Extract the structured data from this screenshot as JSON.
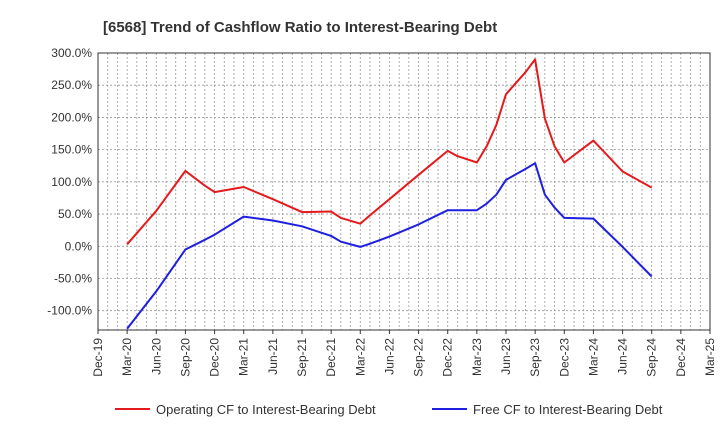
{
  "chart_data": {
    "type": "line",
    "title": "[6568]  Trend of Cashflow Ratio to Interest-Bearing Debt",
    "xlabel": "",
    "ylabel": "",
    "y_unit": "%",
    "ylim": [
      -130,
      300
    ],
    "y_ticks": [
      300,
      250,
      200,
      150,
      100,
      50,
      0,
      -50,
      -100
    ],
    "y_tick_labels": [
      "300.0%",
      "250.0%",
      "200.0%",
      "150.0%",
      "100.0%",
      "50.0%",
      "0.0%",
      "-50.0%",
      "-100.0%"
    ],
    "x_ticks": [
      "Dec-19",
      "Mar-20",
      "Jun-20",
      "Sep-20",
      "Dec-20",
      "Mar-21",
      "Jun-21",
      "Sep-21",
      "Dec-21",
      "Mar-22",
      "Jun-22",
      "Sep-22",
      "Dec-22",
      "Mar-23",
      "Jun-23",
      "Sep-23",
      "Dec-23",
      "Mar-24",
      "Jun-24",
      "Sep-24",
      "Dec-24",
      "Mar-25"
    ],
    "x": [
      "Mar-20",
      "Jun-20",
      "Sep-20",
      "Nov-20",
      "Dec-20",
      "Mar-21",
      "Jun-21",
      "Sep-21",
      "Dec-21",
      "Jan-22",
      "Mar-22",
      "Apr-22",
      "Jun-22",
      "Sep-22",
      "Dec-22",
      "Jan-23",
      "Mar-23",
      "Apr-23",
      "May-23",
      "Jun-23",
      "Aug-23",
      "Sep-23",
      "Oct-23",
      "Nov-23",
      "Dec-23",
      "Mar-24",
      "Jun-24",
      "Sep-24"
    ],
    "series": [
      {
        "name": "Operating CF to Interest-Bearing Debt",
        "color": "#e41a1c",
        "values": [
          3,
          55,
          117,
          94,
          84,
          92,
          73,
          53,
          54,
          44,
          35,
          48,
          73,
          111,
          148,
          140,
          130,
          155,
          188,
          236,
          270,
          290,
          198,
          155,
          130,
          164,
          116,
          91
        ]
      },
      {
        "name": "Free CF to Interest-Bearing Debt",
        "color": "#1f1fe0",
        "values": [
          -128,
          -70,
          -5,
          10,
          18,
          46,
          40,
          31,
          16,
          7,
          -1,
          4,
          15,
          34,
          56,
          56,
          56,
          66,
          80,
          103,
          120,
          129,
          80,
          60,
          44,
          43,
          -1,
          -47
        ]
      }
    ],
    "grid": true,
    "legend_position": "bottom"
  }
}
